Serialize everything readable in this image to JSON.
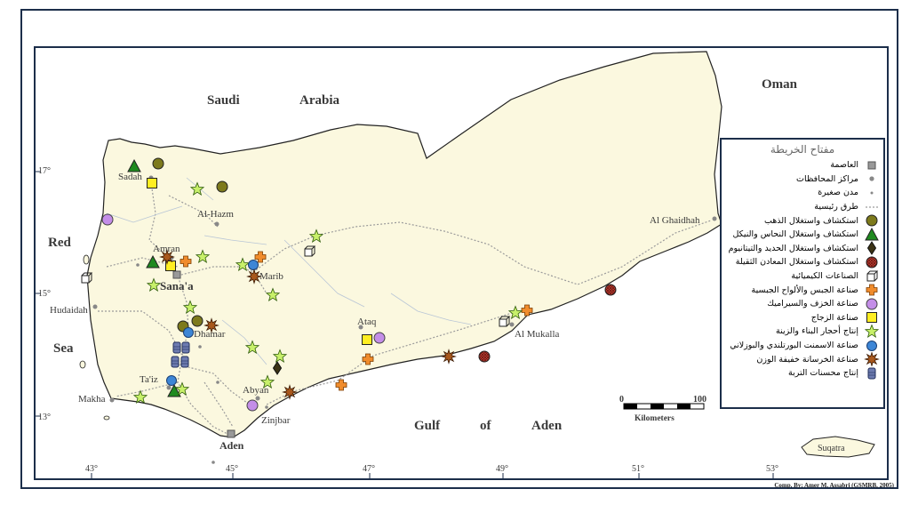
{
  "map": {
    "countries": [
      {
        "label": "Saudi",
        "name": "saudi-label"
      },
      {
        "label": "Arabia",
        "name": "arabia-label"
      },
      {
        "label": "Oman",
        "name": "oman-label"
      }
    ],
    "seas": [
      {
        "label": "Red",
        "name": "red-label"
      },
      {
        "label": "Sea",
        "name": "sea-label"
      },
      {
        "label": "Gulf",
        "name": "gulf-label"
      },
      {
        "label": "of",
        "name": "of-label"
      },
      {
        "label": "Aden",
        "name": "aden-sea-label"
      }
    ],
    "cities": {
      "sanaa": "Sana'a",
      "aden": "Aden",
      "sadah": "Sadah",
      "al_hazm": "Al-Hazm",
      "amran": "Amran",
      "marib": "Marib",
      "hudaidah": "Hudaidah",
      "dhamar": "Dhamar",
      "taiz": "Ta'iz",
      "makha": "Makha",
      "abyan": "Abyan",
      "zinjbar": "Zinjbar",
      "ataq": "Ataq",
      "al_mukalla": "Al Mukalla",
      "al_ghaidhah": "Al Ghaidhah",
      "suqatra": "Suqatra"
    },
    "lat_ticks": [
      "17°",
      "15°",
      "13°"
    ],
    "lon_ticks": [
      "43°",
      "45°",
      "47°",
      "49°",
      "51°",
      "53°"
    ],
    "scale": {
      "start": "0",
      "end": "100",
      "unit": "Kilometers"
    },
    "credit": "Comp. By: Amer M. Assabri (GSMRB, 2005)"
  },
  "legend": {
    "title": "مفتاح الخريطة",
    "items": [
      {
        "label": "العاصمة",
        "icon": "capital-square-icon"
      },
      {
        "label": "مراكز المحافظات",
        "icon": "governorate-dot-icon"
      },
      {
        "label": "مدن صغيرة",
        "icon": "small-city-dot-icon"
      },
      {
        "label": "طرق رئيسية",
        "icon": "road-line-icon"
      },
      {
        "label": "استكشاف واستغلال الذهب",
        "icon": "gold-circle-icon",
        "color": "#7d7a1c"
      },
      {
        "label": "استكشاف واستغلال النحاس والنيكل",
        "icon": "copper-nickel-triangle-icon",
        "color": "#1f8a1f"
      },
      {
        "label": "استكشاف واستغلال الحديد والتيتانيوم",
        "icon": "iron-titanium-diamond-icon",
        "color": "#3b3315"
      },
      {
        "label": "استكشاف واستغلال المعادن الثقيلة",
        "icon": "heavy-metals-hatched-circle-icon",
        "color": "#b8302c"
      },
      {
        "label": "الصناعات الكيميائية",
        "icon": "chemical-cube-icon",
        "color": "#ffffff"
      },
      {
        "label": "صناعة الجبس والألواح الجبسية",
        "icon": "gypsum-cross-icon",
        "color": "#f08c2c"
      },
      {
        "label": "صناعة الخزف والسيراميك",
        "icon": "ceramics-circle-icon",
        "color": "#c48ee8"
      },
      {
        "label": "صناعة الزجاج",
        "icon": "glass-square-icon",
        "color": "#ffee22"
      },
      {
        "label": "إنتاج أحجار البناء والزينة",
        "icon": "building-stone-star-icon",
        "color": "#c8f06a"
      },
      {
        "label": "صناعة الاسمنت البورتلندي والبوزلاني",
        "icon": "cement-circle-icon",
        "color": "#3d86d6"
      },
      {
        "label": "صناعة الخرسانة خفيفة الوزن",
        "icon": "lightweight-concrete-burst-icon",
        "color": "#a9581c"
      },
      {
        "label": "إنتاج محسنات التربة",
        "icon": "soil-barrel-icon",
        "color": "#6d7bb0"
      }
    ]
  }
}
